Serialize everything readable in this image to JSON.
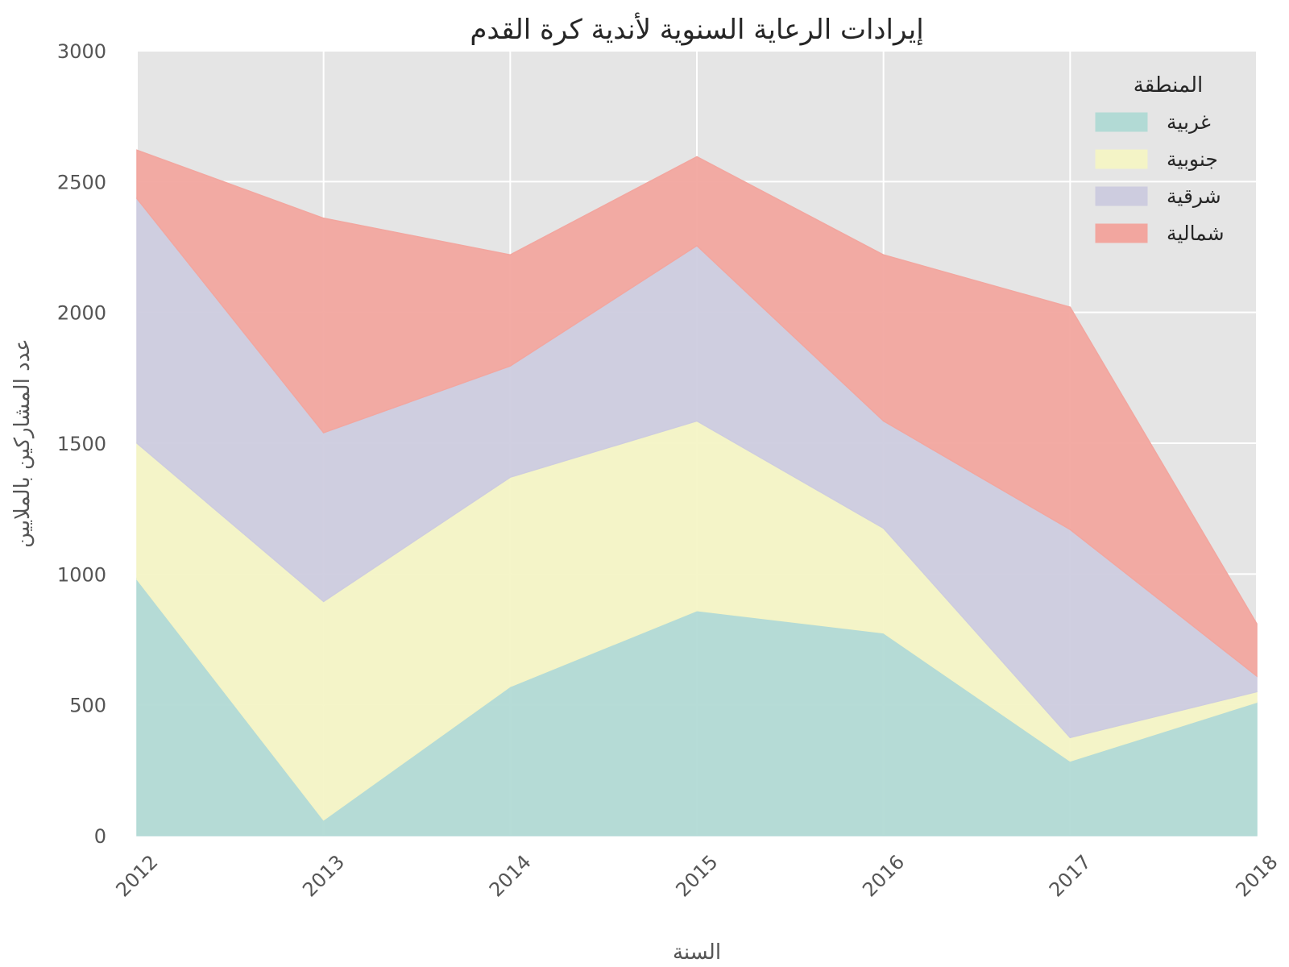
{
  "chart_data": {
    "type": "area",
    "stacked": true,
    "title": "إيرادات الرعاية السنوية لأندية كرة القدم",
    "xlabel": "السنة",
    "ylabel": "عدد المشاركين بالملايين",
    "x": [
      2012,
      2013,
      2014,
      2015,
      2016,
      2017,
      2018
    ],
    "ylim": [
      0,
      3000
    ],
    "yticks": [
      0,
      500,
      1000,
      1500,
      2000,
      2500,
      3000
    ],
    "grid": true,
    "legend": {
      "title": "المنطقة",
      "position": "top-right"
    },
    "series": [
      {
        "name": "غربية",
        "color": "#b2dad5",
        "values": [
          980,
          60,
          570,
          860,
          775,
          285,
          510
        ]
      },
      {
        "name": "جنوبية",
        "color": "#f4f4c6",
        "values": [
          520,
          835,
          800,
          725,
          400,
          90,
          40
        ]
      },
      {
        "name": "شرقية",
        "color": "#cdccdf",
        "values": [
          935,
          645,
          425,
          670,
          410,
          795,
          60
        ]
      },
      {
        "name": "شمالية",
        "color": "#f2a69f",
        "values": [
          185,
          820,
          425,
          340,
          635,
          850,
          200
        ]
      }
    ],
    "colors": {
      "plot_background": "#e5e5e5",
      "grid": "#ffffff"
    }
  }
}
